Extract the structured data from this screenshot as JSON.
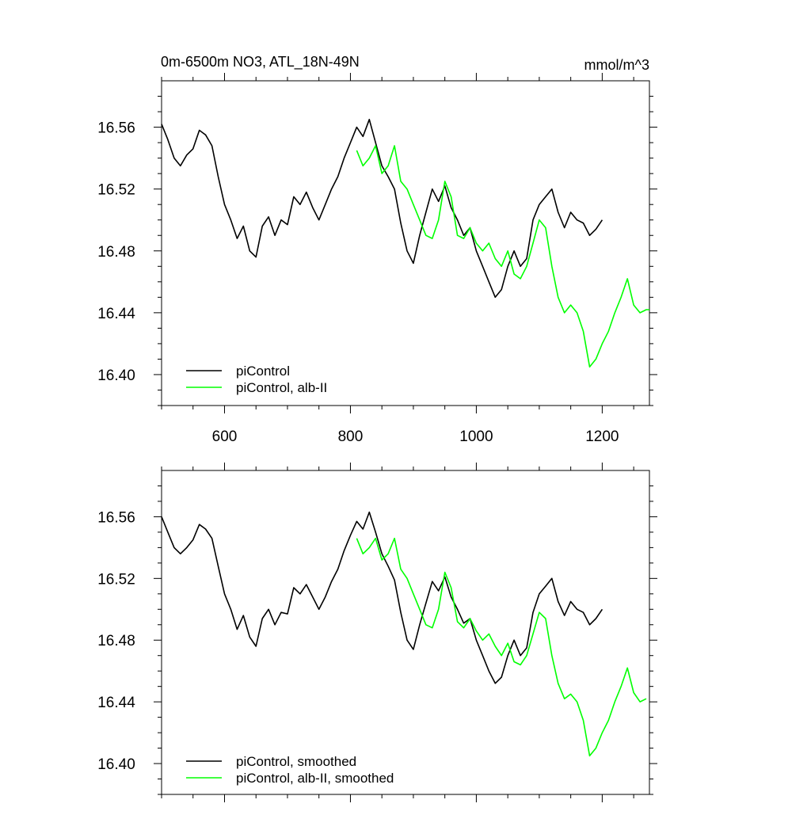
{
  "header": {
    "title": "0m-6500m NO3, ATL_18N-49N",
    "units": "mmol/m^3"
  },
  "colors": {
    "control": "#000000",
    "experiment": "#00ff00"
  },
  "chart_data": [
    {
      "type": "line",
      "title": "0m-6500m NO3, ATL_18N-49N",
      "units": "mmol/m^3",
      "xlim": [
        500,
        1275
      ],
      "ylim": [
        16.38,
        16.59
      ],
      "xticks": [
        600,
        800,
        1000,
        1200
      ],
      "xtick_labels": [
        "600",
        "800",
        "1000",
        "1200"
      ],
      "yticks": [
        16.4,
        16.44,
        16.48,
        16.52,
        16.56
      ],
      "ytick_labels": [
        "16.40",
        "16.44",
        "16.48",
        "16.52",
        "16.56"
      ],
      "grid": false,
      "legend": "bottom-left",
      "series": [
        {
          "name": "piControl",
          "color": "#000000",
          "x": [
            500,
            510,
            520,
            530,
            540,
            550,
            560,
            570,
            580,
            590,
            600,
            610,
            620,
            630,
            640,
            650,
            660,
            670,
            680,
            690,
            700,
            710,
            720,
            730,
            740,
            750,
            760,
            770,
            780,
            790,
            800,
            810,
            820,
            830,
            840,
            850,
            860,
            870,
            880,
            890,
            900,
            910,
            920,
            930,
            940,
            950,
            960,
            970,
            980,
            990,
            1000,
            1010,
            1020,
            1030,
            1040,
            1050,
            1060,
            1070,
            1080,
            1090,
            1100,
            1110,
            1120,
            1130,
            1140,
            1150,
            1160,
            1170,
            1180,
            1190,
            1200
          ],
          "y": [
            16.562,
            16.552,
            16.54,
            16.535,
            16.542,
            16.546,
            16.558,
            16.555,
            16.548,
            16.528,
            16.51,
            16.5,
            16.488,
            16.496,
            16.48,
            16.476,
            16.496,
            16.502,
            16.49,
            16.5,
            16.497,
            16.515,
            16.51,
            16.518,
            16.508,
            16.5,
            16.51,
            16.52,
            16.528,
            16.54,
            16.55,
            16.56,
            16.554,
            16.565,
            16.55,
            16.535,
            16.528,
            16.52,
            16.498,
            16.48,
            16.472,
            16.49,
            16.505,
            16.52,
            16.512,
            16.522,
            16.508,
            16.5,
            16.49,
            16.495,
            16.48,
            16.47,
            16.46,
            16.45,
            16.455,
            16.47,
            16.48,
            16.47,
            16.475,
            16.5,
            16.51,
            16.515,
            16.52,
            16.505,
            16.495,
            16.505,
            16.5,
            16.498,
            16.49,
            16.494,
            16.5
          ]
        },
        {
          "name": "piControl, alb-II",
          "color": "#00ff00",
          "x": [
            810,
            820,
            830,
            840,
            850,
            860,
            870,
            880,
            890,
            900,
            910,
            920,
            930,
            940,
            950,
            960,
            970,
            980,
            990,
            1000,
            1010,
            1020,
            1030,
            1040,
            1050,
            1060,
            1070,
            1080,
            1090,
            1100,
            1110,
            1120,
            1130,
            1140,
            1150,
            1160,
            1170,
            1180,
            1190,
            1200,
            1210,
            1220,
            1230,
            1240,
            1250,
            1260,
            1270,
            1275
          ],
          "y": [
            16.545,
            16.535,
            16.54,
            16.548,
            16.53,
            16.535,
            16.548,
            16.525,
            16.52,
            16.51,
            16.5,
            16.49,
            16.488,
            16.5,
            16.525,
            16.515,
            16.49,
            16.488,
            16.495,
            16.485,
            16.48,
            16.485,
            16.475,
            16.47,
            16.48,
            16.465,
            16.462,
            16.47,
            16.485,
            16.5,
            16.495,
            16.47,
            16.45,
            16.44,
            16.445,
            16.44,
            16.428,
            16.405,
            16.41,
            16.42,
            16.428,
            16.44,
            16.45,
            16.462,
            16.445,
            16.44,
            16.442,
            16.442
          ]
        }
      ]
    },
    {
      "type": "line",
      "xlim": [
        500,
        1275
      ],
      "ylim": [
        16.38,
        16.59
      ],
      "xticks": [
        600,
        800,
        1000,
        1200
      ],
      "yticks": [
        16.4,
        16.44,
        16.48,
        16.52,
        16.56
      ],
      "ytick_labels": [
        "16.40",
        "16.44",
        "16.48",
        "16.52",
        "16.56"
      ],
      "grid": false,
      "legend": "bottom-left",
      "series": [
        {
          "name": "piControl, smoothed",
          "color": "#000000",
          "x": [
            500,
            510,
            520,
            530,
            540,
            550,
            560,
            570,
            580,
            590,
            600,
            610,
            620,
            630,
            640,
            650,
            660,
            670,
            680,
            690,
            700,
            710,
            720,
            730,
            740,
            750,
            760,
            770,
            780,
            790,
            800,
            810,
            820,
            830,
            840,
            850,
            860,
            870,
            880,
            890,
            900,
            910,
            920,
            930,
            940,
            950,
            960,
            970,
            980,
            990,
            1000,
            1010,
            1020,
            1030,
            1040,
            1050,
            1060,
            1070,
            1080,
            1090,
            1100,
            1110,
            1120,
            1130,
            1140,
            1150,
            1160,
            1170,
            1180,
            1190,
            1200
          ],
          "y": [
            16.56,
            16.55,
            16.54,
            16.536,
            16.54,
            16.545,
            16.555,
            16.552,
            16.546,
            16.528,
            16.51,
            16.5,
            16.487,
            16.496,
            16.482,
            16.476,
            16.494,
            16.5,
            16.49,
            16.498,
            16.497,
            16.514,
            16.51,
            16.516,
            16.508,
            16.5,
            16.508,
            16.518,
            16.526,
            16.538,
            16.548,
            16.557,
            16.552,
            16.563,
            16.55,
            16.536,
            16.528,
            16.519,
            16.498,
            16.48,
            16.474,
            16.49,
            16.504,
            16.518,
            16.512,
            16.521,
            16.508,
            16.5,
            16.491,
            16.494,
            16.48,
            16.47,
            16.46,
            16.452,
            16.456,
            16.47,
            16.48,
            16.47,
            16.475,
            16.498,
            16.51,
            16.515,
            16.52,
            16.505,
            16.496,
            16.505,
            16.5,
            16.498,
            16.49,
            16.494,
            16.5
          ]
        },
        {
          "name": "piControl, alb-II, smoothed",
          "color": "#00ff00",
          "x": [
            810,
            820,
            830,
            840,
            850,
            860,
            870,
            880,
            890,
            900,
            910,
            920,
            930,
            940,
            950,
            960,
            970,
            980,
            990,
            1000,
            1010,
            1020,
            1030,
            1040,
            1050,
            1060,
            1070,
            1080,
            1090,
            1100,
            1110,
            1120,
            1130,
            1140,
            1150,
            1160,
            1170,
            1180,
            1190,
            1200,
            1210,
            1220,
            1230,
            1240,
            1250,
            1260,
            1270
          ],
          "y": [
            16.546,
            16.536,
            16.54,
            16.546,
            16.532,
            16.536,
            16.546,
            16.526,
            16.52,
            16.51,
            16.5,
            16.49,
            16.488,
            16.5,
            16.524,
            16.514,
            16.492,
            16.488,
            16.494,
            16.486,
            16.48,
            16.484,
            16.476,
            16.47,
            16.478,
            16.466,
            16.464,
            16.47,
            16.484,
            16.498,
            16.494,
            16.47,
            16.452,
            16.442,
            16.445,
            16.44,
            16.428,
            16.405,
            16.41,
            16.42,
            16.428,
            16.44,
            16.45,
            16.462,
            16.446,
            16.44,
            16.442
          ]
        }
      ]
    }
  ]
}
